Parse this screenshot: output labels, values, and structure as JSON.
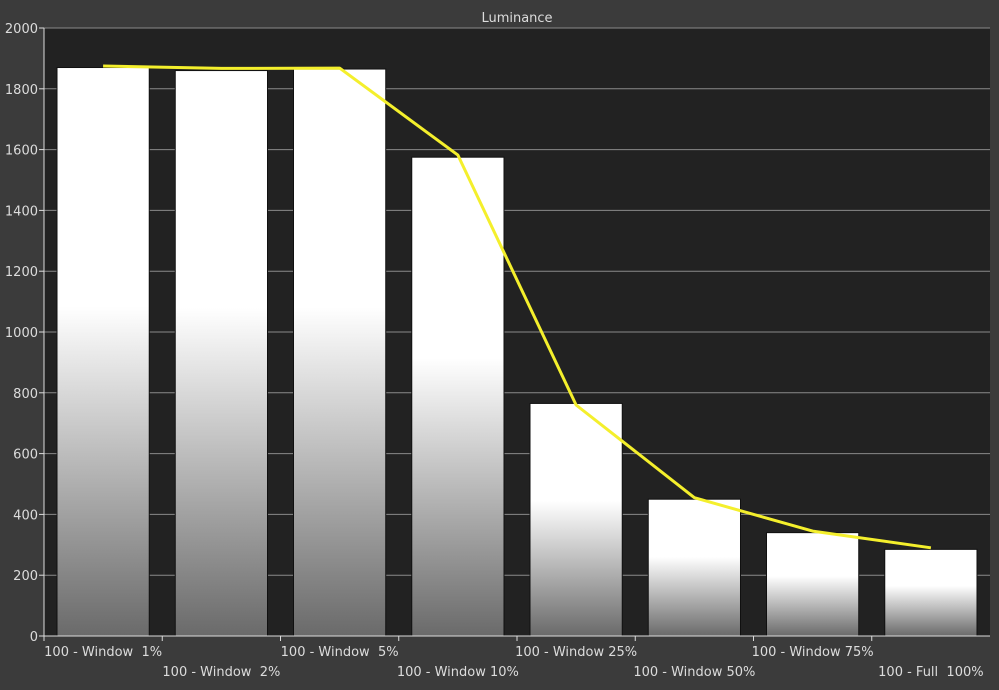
{
  "chart_data": {
    "type": "bar",
    "title": "Luminance",
    "xlabel": "",
    "ylabel": "",
    "ylim": [
      0,
      2000
    ],
    "yticks": [
      0,
      200,
      400,
      600,
      800,
      1000,
      1200,
      1400,
      1600,
      1800,
      2000
    ],
    "grid": true,
    "categories": [
      "100 - Window  1%",
      "100 - Window  2%",
      "100 - Window  5%",
      "100 - Window 10%",
      "100 - Window 25%",
      "100 - Window 50%",
      "100 - Window 75%",
      "100 - Full  100%"
    ],
    "series": [
      {
        "type": "bar",
        "values": [
          1870,
          1860,
          1865,
          1575,
          765,
          450,
          340,
          285
        ]
      },
      {
        "type": "line",
        "values": [
          1875,
          1867,
          1868,
          1582,
          760,
          455,
          345,
          290
        ]
      }
    ],
    "colors": {
      "background": "#3b3b3b",
      "plot_background": "#222222",
      "grid": "#8a8a8a",
      "bar_top": "#ffffff",
      "bar_bottom": "#6a6a6a",
      "line": "#f4ef2c",
      "text": "#dcdcdc"
    }
  }
}
